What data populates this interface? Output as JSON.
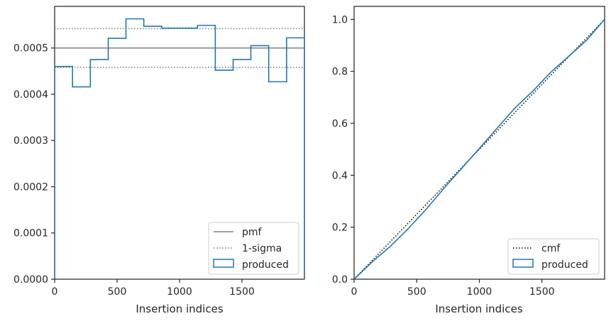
{
  "chart_data": [
    {
      "type": "step",
      "xlabel": "Insertion indices",
      "ylabel": "",
      "xlim": [
        0,
        2000
      ],
      "ylim": [
        0,
        0.00059
      ],
      "xticks": [
        0,
        500,
        1000,
        1500
      ],
      "xtick_labels": [
        "0",
        "500",
        "1000",
        "1500"
      ],
      "yticks": [
        0,
        0.0001,
        0.0002,
        0.0003,
        0.0004,
        0.0005
      ],
      "ytick_labels": [
        "0.0000",
        "0.0001",
        "0.0002",
        "0.0003",
        "0.0004",
        "0.0005"
      ],
      "legend_position": "lower-right",
      "reference_lines": [
        {
          "name": "pmf",
          "y": 0.0005,
          "style": "solid",
          "color": "#808080"
        },
        {
          "name": "1-sigma",
          "y": 0.000542,
          "style": "dotted",
          "color": "#808080"
        },
        {
          "name": "1-sigma",
          "y": 0.000458,
          "style": "dotted",
          "color": "#808080",
          "in_legend": false
        }
      ],
      "series": [
        {
          "name": "produced",
          "color": "#1f77b4",
          "bin_edges": [
            0,
            143,
            286,
            429,
            571,
            714,
            857,
            1000,
            1143,
            1286,
            1429,
            1571,
            1714,
            1857,
            2000
          ],
          "values": [
            0.00046,
            0.000416,
            0.000475,
            0.000521,
            0.000563,
            0.000547,
            0.000543,
            0.000543,
            0.000549,
            0.000452,
            0.000475,
            0.000505,
            0.000427,
            0.000522
          ]
        }
      ],
      "legend": [
        "pmf",
        "1-sigma",
        "produced"
      ]
    },
    {
      "type": "line",
      "xlabel": "Insertion indices",
      "ylabel": "",
      "xlim": [
        0,
        2000
      ],
      "ylim": [
        0,
        1.05
      ],
      "xticks": [
        0,
        500,
        1000,
        1500
      ],
      "xtick_labels": [
        "0",
        "500",
        "1000",
        "1500"
      ],
      "yticks": [
        0,
        0.2,
        0.4,
        0.6,
        0.8,
        1.0
      ],
      "ytick_labels": [
        "0.0",
        "0.2",
        "0.4",
        "0.6",
        "0.8",
        "1.0"
      ],
      "legend_position": "lower-right",
      "series": [
        {
          "name": "cmf",
          "color": "#000000",
          "style": "dotted",
          "x": [
            0,
            2000
          ],
          "y": [
            0,
            1.0
          ]
        },
        {
          "name": "produced",
          "color": "#1f77b4",
          "style": "solid",
          "x": [
            0,
            143,
            286,
            429,
            571,
            714,
            857,
            1000,
            1143,
            1286,
            1429,
            1571,
            1714,
            1857,
            2000
          ],
          "y": [
            0,
            0.066,
            0.125,
            0.193,
            0.267,
            0.348,
            0.426,
            0.503,
            0.582,
            0.66,
            0.725,
            0.797,
            0.858,
            0.92,
            1.0
          ]
        }
      ],
      "legend": [
        "cmf",
        "produced"
      ]
    }
  ]
}
